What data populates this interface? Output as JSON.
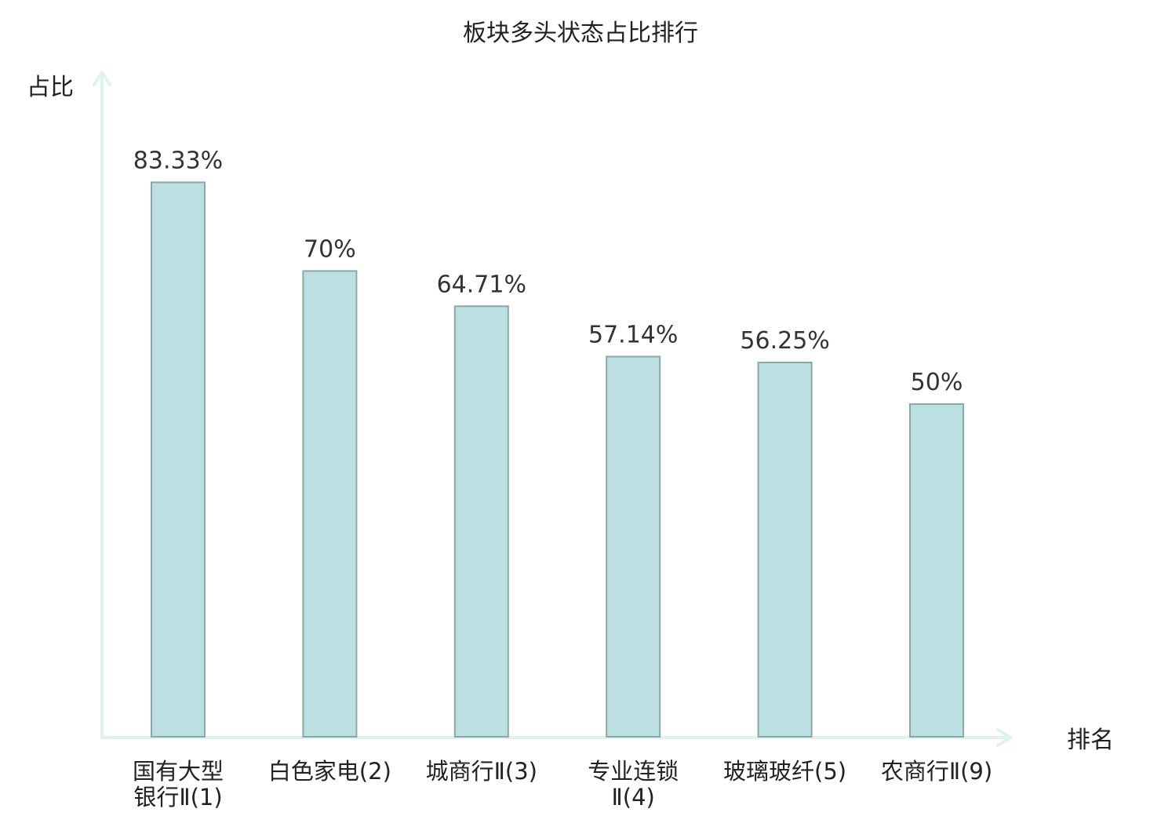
{
  "chart_data": {
    "type": "bar",
    "title": "板块多头状态占比排行",
    "ylabel": "占比",
    "xlabel": "排名",
    "ylim": [
      0,
      100
    ],
    "grid": false,
    "categories": [
      "国有大型银行Ⅱ(1)",
      "白色家电(2)",
      "城商行Ⅱ(3)",
      "专业连锁Ⅱ(4)",
      "玻璃玻纤(5)",
      "农商行Ⅱ(9)"
    ],
    "values": [
      83.33,
      70,
      64.71,
      57.14,
      56.25,
      50
    ],
    "value_labels": [
      "83.33%",
      "70%",
      "64.71%",
      "57.14%",
      "56.25%",
      "50%"
    ],
    "category_lines": [
      [
        "国有大型",
        "银行Ⅱ(1)"
      ],
      [
        "白色家电(2)"
      ],
      [
        "城商行Ⅱ(3)"
      ],
      [
        "专业连锁",
        "Ⅱ(4)"
      ],
      [
        "玻璃玻纤(5)"
      ],
      [
        "农商行Ⅱ(9)"
      ]
    ],
    "category_colors": [
      "#222222",
      "#222222",
      "#222222",
      "#222222",
      "#222222",
      "#dd1111"
    ],
    "colors": {
      "bar_fill": "#bce0e2",
      "bar_stroke": "#8aa7aa",
      "axis": "#e0f2ef",
      "highlight": "#dd1111"
    }
  }
}
